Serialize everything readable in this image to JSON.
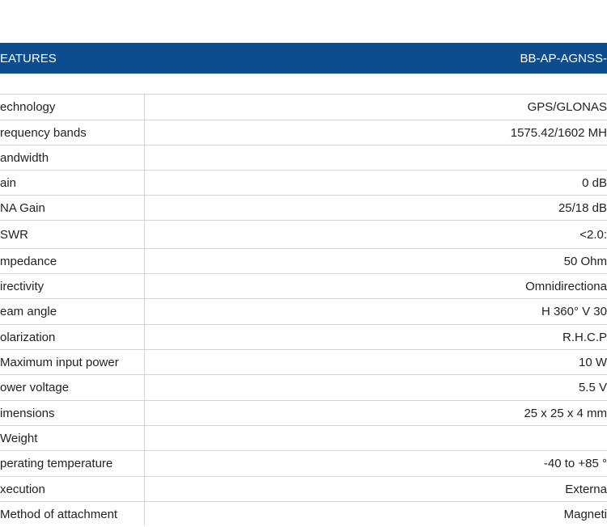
{
  "header": {
    "left": "EATURES",
    "right": "BB-AP-AGNSS-"
  },
  "rows": [
    {
      "label": "echnology",
      "value": "GPS/GLONAS"
    },
    {
      "label": "requency bands",
      "value": "1575.42/1602 MH"
    },
    {
      "label": "andwidth"
    },
    {
      "label": "ain",
      "value": "0 dB"
    },
    {
      "label": "NA Gain",
      "value": "25/18 dB"
    },
    {
      "label": "SWR",
      "value": "<2.0:"
    },
    {
      "label": "mpedance",
      "value": "50 Ohm"
    },
    {
      "label": "irectivity",
      "value": "Omnidirectiona"
    },
    {
      "label": "eam angle",
      "value": "H 360° V 30"
    },
    {
      "label": "olarization",
      "value": "R.H.C.P"
    },
    {
      "label": "Maximum input power",
      "value": "10 W"
    },
    {
      "label": "ower voltage",
      "value": "5.5 V"
    },
    {
      "label": "imensions",
      "value": "25 x 25 x 4 mm"
    },
    {
      "label": "Weight"
    },
    {
      "label": "perating temperature",
      "value": "-40 to +85 °"
    },
    {
      "label": "xecution",
      "value": "Externa"
    },
    {
      "label": "Method of attachment",
      "value": "Magneti"
    }
  ]
}
